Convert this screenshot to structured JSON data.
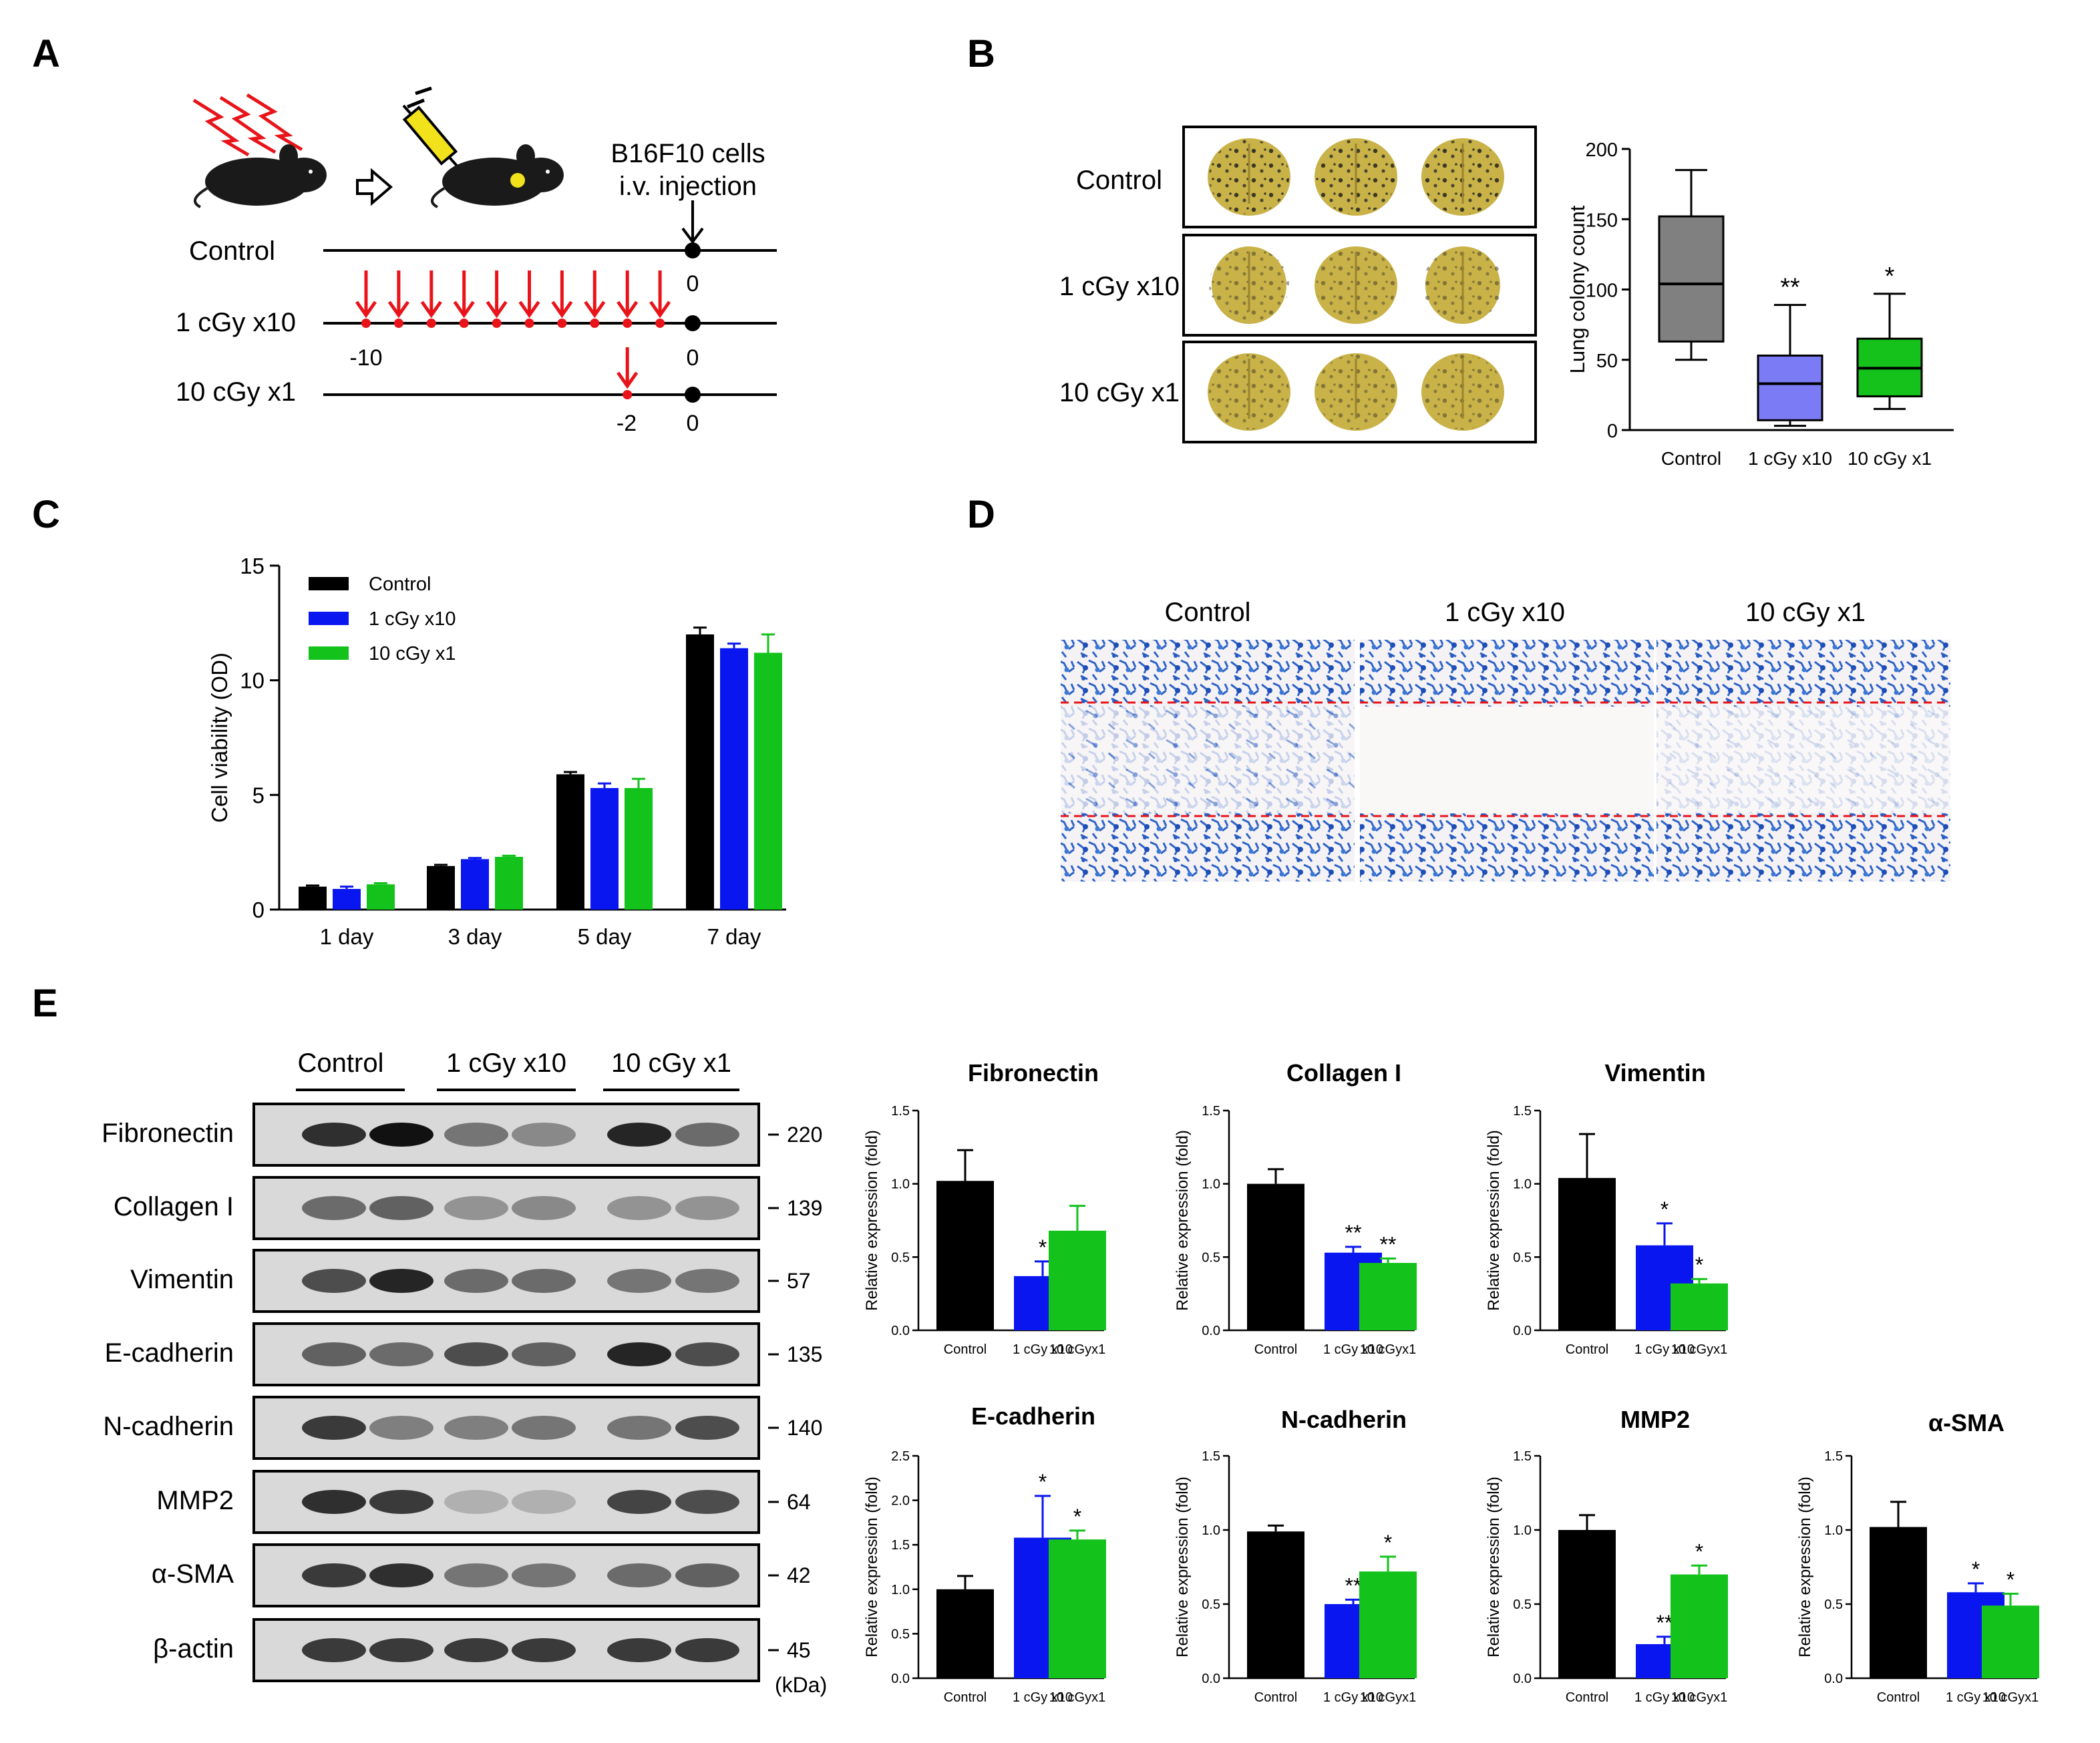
{
  "panels": {
    "A": {
      "letter": "A",
      "injection_label_1": "B16F10 cells",
      "injection_label_2": "i.v. injection",
      "rows": [
        {
          "label": "Control",
          "day_labels": [
            "0"
          ],
          "red_days": []
        },
        {
          "label": "1 cGy x10",
          "day_labels": [
            "-10",
            "0"
          ],
          "red_days": [
            -10,
            -9,
            -8,
            -7,
            -6,
            -5,
            -4,
            -3,
            -2,
            -1
          ]
        },
        {
          "label": "10 cGy x1",
          "day_labels": [
            "-2",
            "0"
          ],
          "red_days": [
            -2
          ]
        }
      ],
      "colors": {
        "arrow": "#e8141a",
        "mouse": "#1a1a1a",
        "syringe": "#f2e21c",
        "lightning": "#e8141a"
      }
    },
    "B": {
      "letter": "B",
      "lung_rows": [
        "Control",
        "1 cGy x10",
        "10 cGy x1"
      ],
      "lung_color": "#c9b248"
    },
    "C": {
      "letter": "C"
    },
    "D": {
      "letter": "D",
      "labels": [
        "Control",
        "1 cGy x10",
        "10 cGy x1"
      ],
      "stain_color": "#2f64c8"
    },
    "E": {
      "letter": "E",
      "group_labels": [
        "Control",
        "1 cGy x10",
        "10 cGy x1"
      ],
      "blots": [
        {
          "protein": "Fibronectin",
          "kda": "220"
        },
        {
          "protein": "Collagen I",
          "kda": "139"
        },
        {
          "protein": "Vimentin",
          "kda": "57"
        },
        {
          "protein": "E-cadherin",
          "kda": "135"
        },
        {
          "protein": "N-cadherin",
          "kda": "140"
        },
        {
          "protein": "MMP2",
          "kda": "64"
        },
        {
          "protein": "α-SMA",
          "kda": "42"
        },
        {
          "protein": "β-actin",
          "kda": "45"
        }
      ],
      "kda_unit": "(kDa)"
    }
  },
  "colors": {
    "control": "#000000",
    "cgy1x10": "#0a16f0",
    "cgy10x1": "#13c21b",
    "box_control": "#808080",
    "box_1x10": "#7b7cf5",
    "box_10x1": "#14c21b"
  },
  "chart_data": [
    {
      "id": "B",
      "type": "box",
      "title": "",
      "ylabel": "Lung colony count",
      "xlabel": "",
      "categories": [
        "Control",
        "1 cGy x10",
        "10 cGy x1"
      ],
      "ylim": [
        0,
        200
      ],
      "yticks": [
        "0",
        "50",
        "100",
        "150",
        "200"
      ],
      "boxes": [
        {
          "min": 50,
          "q1": 63,
          "median": 104,
          "q3": 152,
          "max": 185
        },
        {
          "min": 3,
          "q1": 7,
          "median": 33,
          "q3": 53,
          "max": 89
        },
        {
          "min": 15,
          "q1": 24,
          "median": 44,
          "q3": 65,
          "max": 97
        }
      ],
      "significance": [
        "",
        "**",
        "*"
      ]
    },
    {
      "id": "C",
      "type": "bar",
      "title": "",
      "ylabel": "Cell viability (OD)",
      "xlabel": "",
      "categories": [
        "1 day",
        "3 day",
        "5 day",
        "7 day"
      ],
      "ylim": [
        0,
        15
      ],
      "yticks": [
        "0",
        "5",
        "10",
        "15"
      ],
      "series": [
        {
          "name": "Control",
          "values": [
            1.0,
            1.9,
            5.9,
            12.0
          ],
          "errors": [
            0.05,
            0.05,
            0.1,
            0.3
          ]
        },
        {
          "name": "1 cGy x10",
          "values": [
            0.9,
            2.2,
            5.3,
            11.4
          ],
          "errors": [
            0.1,
            0.05,
            0.2,
            0.2
          ]
        },
        {
          "name": "10 cGy x1",
          "values": [
            1.1,
            2.3,
            5.3,
            11.2
          ],
          "errors": [
            0.05,
            0.05,
            0.4,
            0.8
          ]
        }
      ]
    },
    {
      "id": "E-Fibronectin",
      "type": "bar",
      "title": "Fibronectin",
      "ylabel": "Relative expression (fold)",
      "categories": [
        "Control",
        "1 cGy x10",
        "10 cGyx1"
      ],
      "ylim": [
        0,
        1.5
      ],
      "yticks": [
        "0.0",
        "0.5",
        "1.0",
        "1.5"
      ],
      "values": [
        1.02,
        0.37,
        0.68
      ],
      "errors": [
        0.21,
        0.1,
        0.17
      ],
      "significance": [
        "",
        "*",
        ""
      ]
    },
    {
      "id": "E-Collagen",
      "type": "bar",
      "title": "Collagen I",
      "ylabel": "Relative expression (fold)",
      "categories": [
        "Control",
        "1 cGy x10",
        "10 cGyx1"
      ],
      "ylim": [
        0,
        1.5
      ],
      "yticks": [
        "0.0",
        "0.5",
        "1.0",
        "1.5"
      ],
      "values": [
        1.0,
        0.53,
        0.46
      ],
      "errors": [
        0.1,
        0.04,
        0.03
      ],
      "significance": [
        "",
        "**",
        "**"
      ]
    },
    {
      "id": "E-Vimentin",
      "type": "bar",
      "title": "Vimentin",
      "ylabel": "Relative expression (fold)",
      "categories": [
        "Control",
        "1 cGy x10",
        "10 cGyx1"
      ],
      "ylim": [
        0,
        1.5
      ],
      "yticks": [
        "0.0",
        "0.5",
        "1.0",
        "1.5"
      ],
      "values": [
        1.04,
        0.58,
        0.32
      ],
      "errors": [
        0.3,
        0.15,
        0.03
      ],
      "significance": [
        "",
        "*",
        "*"
      ]
    },
    {
      "id": "E-Ecadherin",
      "type": "bar",
      "title": "E-cadherin",
      "ylabel": "Relative expression (fold)",
      "categories": [
        "Control",
        "1 cGy x10",
        "10 cGyx1"
      ],
      "ylim": [
        0,
        2.5
      ],
      "yticks": [
        "0.0",
        "0.5",
        "1.0",
        "1.5",
        "2.0",
        "2.5"
      ],
      "values": [
        1.0,
        1.58,
        1.56
      ],
      "errors": [
        0.15,
        0.47,
        0.1
      ],
      "significance": [
        "",
        "*",
        "*"
      ]
    },
    {
      "id": "E-Ncadherin",
      "type": "bar",
      "title": "N-cadherin",
      "ylabel": "Relative expression (fold)",
      "categories": [
        "Control",
        "1 cGy x10",
        "10 cGyx1"
      ],
      "ylim": [
        0,
        1.5
      ],
      "yticks": [
        "0.0",
        "0.5",
        "1.0",
        "1.5"
      ],
      "values": [
        0.99,
        0.5,
        0.72
      ],
      "errors": [
        0.04,
        0.03,
        0.1
      ],
      "significance": [
        "",
        "**",
        "*"
      ]
    },
    {
      "id": "E-MMP2",
      "type": "bar",
      "title": "MMP2",
      "ylabel": "Relative expression (fold)",
      "categories": [
        "Control",
        "1 cGy x10",
        "10 cGyx1"
      ],
      "ylim": [
        0,
        1.5
      ],
      "yticks": [
        "0.0",
        "0.5",
        "1.0",
        "1.5"
      ],
      "values": [
        1.0,
        0.23,
        0.7
      ],
      "errors": [
        0.1,
        0.05,
        0.06
      ],
      "significance": [
        "",
        "**",
        "*"
      ]
    },
    {
      "id": "E-aSMA",
      "type": "bar",
      "title": "α-SMA",
      "ylabel": "Relative expression (fold)",
      "categories": [
        "Control",
        "1 cGy x10",
        "10 cGyx1"
      ],
      "ylim": [
        0,
        1.5
      ],
      "yticks": [
        "0.0",
        "0.5",
        "1.0",
        "1.5"
      ],
      "values": [
        1.02,
        0.58,
        0.49
      ],
      "errors": [
        0.17,
        0.06,
        0.08
      ],
      "significance": [
        "",
        "*",
        "*"
      ]
    }
  ]
}
